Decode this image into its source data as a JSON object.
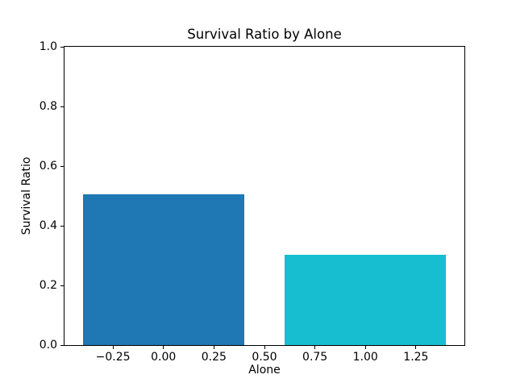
{
  "figure": {
    "background": "#ffffff",
    "text_color": "#000000",
    "spine_color": "#000000"
  },
  "chart_data": {
    "type": "bar",
    "title": "Survival Ratio by Alone",
    "xlabel": "Alone",
    "ylabel": "Survival Ratio",
    "categories": [
      0,
      1
    ],
    "values": [
      0.505,
      0.304
    ],
    "bar_colors": [
      "#1f77b4",
      "#17becf"
    ],
    "bar_width": 0.8,
    "xlim": [
      -0.49,
      1.49
    ],
    "ylim": [
      0.0,
      1.0
    ],
    "xticks": {
      "values": [
        -0.25,
        0.0,
        0.25,
        0.5,
        0.75,
        1.0,
        1.25
      ],
      "labels": [
        "−0.25",
        "0.00",
        "0.25",
        "0.50",
        "0.75",
        "1.00",
        "1.25"
      ]
    },
    "yticks": {
      "values": [
        0.0,
        0.2,
        0.4,
        0.6,
        0.8,
        1.0
      ],
      "labels": [
        "0.0",
        "0.2",
        "0.4",
        "0.6",
        "0.8",
        "1.0"
      ]
    },
    "grid": false,
    "legend": null
  }
}
